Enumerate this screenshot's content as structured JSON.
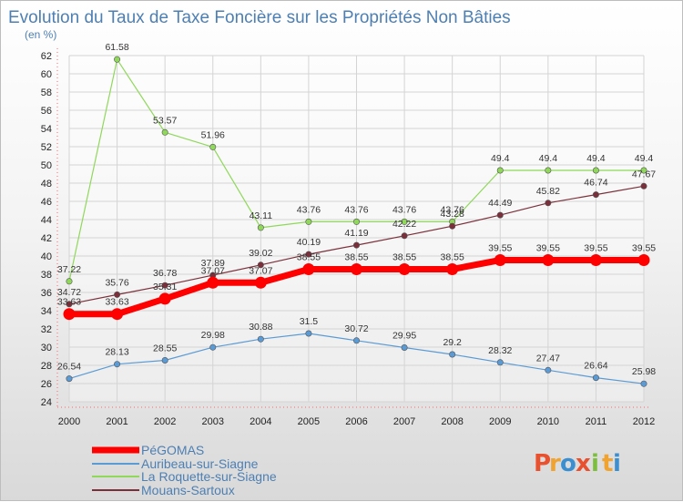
{
  "header": {
    "title": "Evolution du Taux de Taxe Foncière sur les Propriétés Non Bâties",
    "subtitle": "(en %)"
  },
  "logo": {
    "letters": [
      "P",
      "r",
      "o",
      "x",
      "i",
      "t",
      "i"
    ],
    "colors": [
      "#e8502e",
      "#f0a330",
      "#3b8fd0",
      "#e8502e",
      "#7cbf3c",
      "#f0a330",
      "#3b8fd0"
    ]
  },
  "chart_data": {
    "type": "line",
    "title": "Evolution du Taux de Taxe Foncière sur les Propriétés Non Bâties",
    "ylabel": "(en %)",
    "x": [
      "2000",
      "2001",
      "2002",
      "2003",
      "2004",
      "2005",
      "2006",
      "2007",
      "2008",
      "2009",
      "2010",
      "2011",
      "2012"
    ],
    "ylim": [
      24,
      62
    ],
    "yticks": [
      24,
      26,
      28,
      30,
      32,
      34,
      36,
      38,
      40,
      42,
      44,
      46,
      48,
      50,
      52,
      54,
      56,
      58,
      60,
      62
    ],
    "grid": true,
    "legend_position": "bottom-left",
    "series": [
      {
        "name": "PéGOMAS",
        "color": "#ff0000",
        "width": 7,
        "labels": [
          "33.63",
          "33.63",
          "35.31",
          "37.07",
          "37.07",
          "38.55",
          "38.55",
          "38.55",
          "38.55",
          "39.55",
          "39.55",
          "39.55",
          "39.55"
        ],
        "values": [
          33.63,
          33.63,
          35.31,
          37.07,
          37.07,
          38.55,
          38.55,
          38.55,
          38.55,
          39.55,
          39.55,
          39.55,
          39.55
        ]
      },
      {
        "name": "Auribeau-sur-Siagne",
        "color": "#5b9bd5",
        "width": 1.2,
        "labels": [
          "26.54",
          "28.13",
          "28.55",
          "29.98",
          "30.88",
          "31.5",
          "30.72",
          "29.95",
          "29.2",
          "28.32",
          "27.47",
          "26.64",
          "25.98"
        ],
        "values": [
          26.54,
          28.13,
          28.55,
          29.98,
          30.88,
          31.5,
          30.72,
          29.95,
          29.2,
          28.32,
          27.47,
          26.64,
          25.98
        ]
      },
      {
        "name": "La Roquette-sur-Siagne",
        "color": "#8fd85a",
        "width": 1.2,
        "labels": [
          "37.22",
          "61.58",
          "53.57",
          "51.96",
          "43.11",
          "43.76",
          "43.76",
          "43.76",
          "43.76",
          "49.4",
          "49.4",
          "49.4",
          "49.4"
        ],
        "values": [
          37.22,
          61.58,
          53.57,
          51.96,
          43.11,
          43.76,
          43.76,
          43.76,
          43.76,
          49.4,
          49.4,
          49.4,
          49.4
        ]
      },
      {
        "name": "Mouans-Sartoux",
        "color": "#7b2f3a",
        "width": 1.2,
        "labels": [
          "34.72",
          "35.76",
          "36.78",
          "37.89",
          "39.02",
          "40.19",
          "41.19",
          "42.22",
          "43.28",
          "44.49",
          "45.82",
          "46.74",
          "47.67"
        ],
        "values": [
          34.72,
          35.76,
          36.78,
          37.89,
          39.02,
          40.19,
          41.19,
          42.22,
          43.28,
          44.49,
          45.82,
          46.74,
          47.67
        ]
      }
    ]
  }
}
